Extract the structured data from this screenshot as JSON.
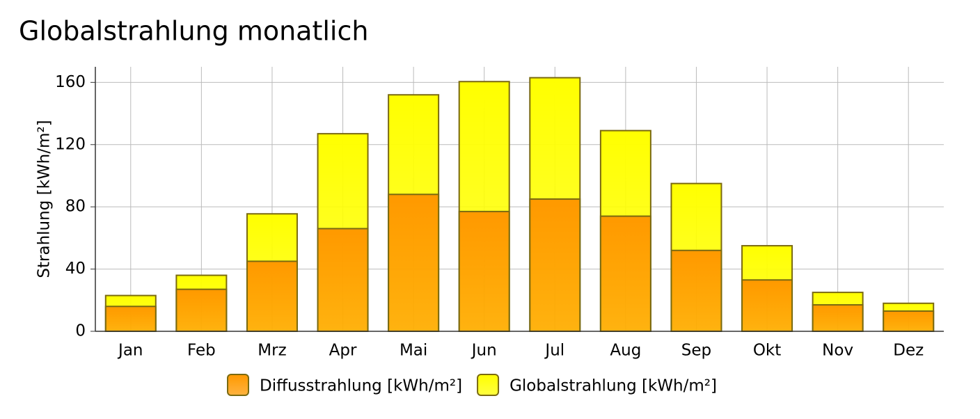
{
  "chart_data": {
    "type": "bar",
    "title": "Globalstrahlung monatlich",
    "y_label": "Strahlung [kWh/m²]",
    "categories": [
      "Jan",
      "Feb",
      "Mrz",
      "Apr",
      "Mai",
      "Jun",
      "Jul",
      "Aug",
      "Sep",
      "Okt",
      "Nov",
      "Dez"
    ],
    "series": [
      {
        "name": "Diffusstrahlung [kWh/m²]",
        "color": "#ff9900",
        "values": [
          16,
          27,
          45,
          66,
          88,
          77,
          85,
          74,
          52,
          33,
          17,
          13
        ]
      },
      {
        "name": "Globalstrahlung [kWh/m²]",
        "color": "#ffff00",
        "values": [
          23,
          36,
          75.5,
          127,
          152,
          160.5,
          163,
          129,
          95,
          55,
          25,
          18
        ]
      }
    ],
    "ylim": [
      0,
      170
    ],
    "yticks": [
      0,
      40,
      80,
      120,
      160
    ],
    "grid": true
  }
}
